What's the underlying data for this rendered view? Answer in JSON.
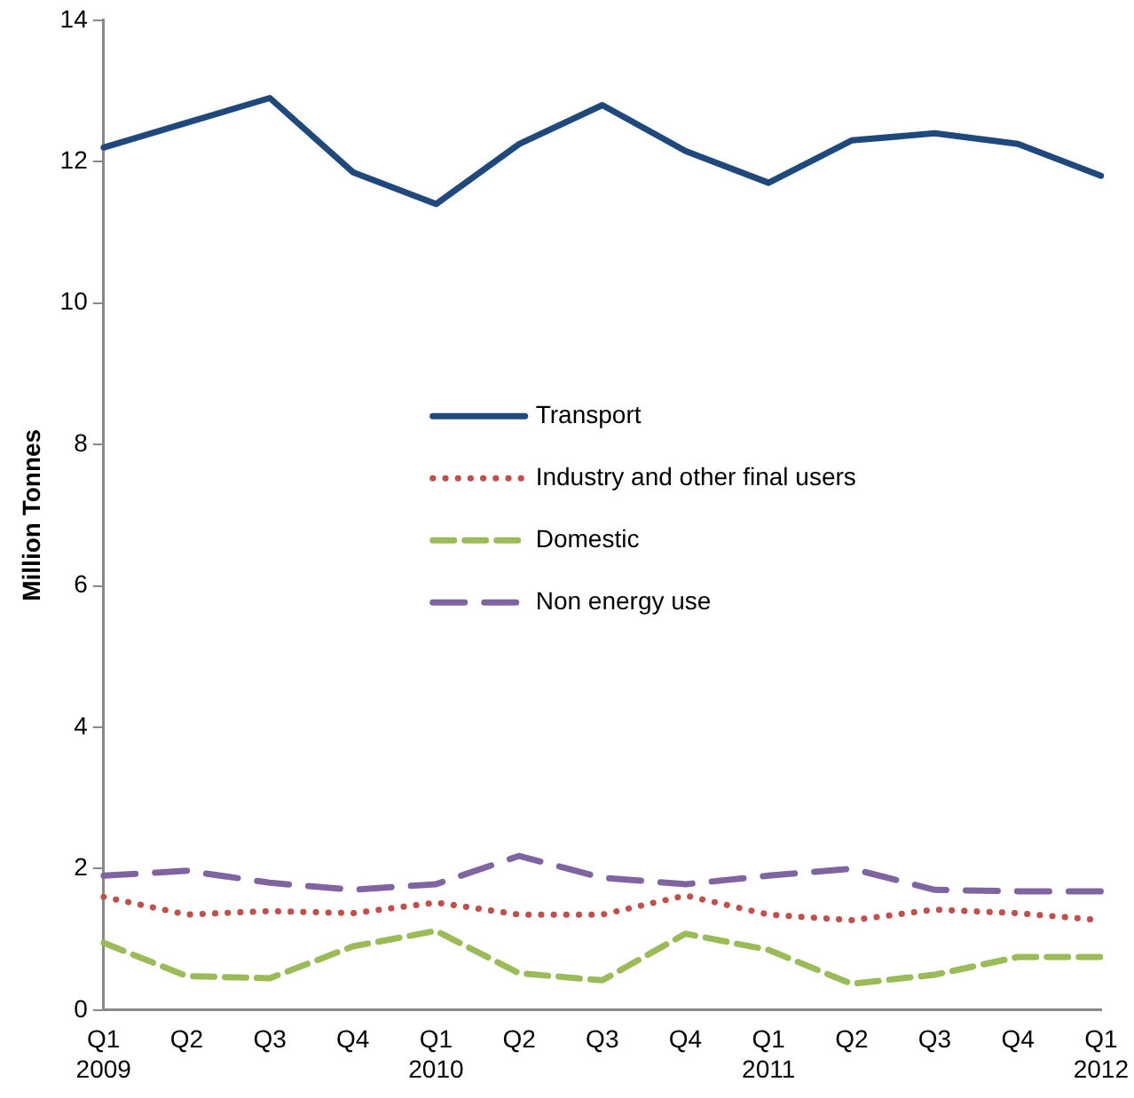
{
  "chart_data": {
    "type": "line",
    "ylabel": "Million Tonnes",
    "categories": [
      "Q1 2009",
      "Q2",
      "Q3",
      "Q4",
      "Q1 2010",
      "Q2",
      "Q3",
      "Q4",
      "Q1 2011",
      "Q2",
      "Q3",
      "Q4",
      "Q1 2012"
    ],
    "series": [
      {
        "name": "Transport",
        "color": "#1f497d",
        "line_style": "solid",
        "values": [
          12.2,
          12.55,
          12.9,
          11.85,
          11.4,
          12.25,
          12.8,
          12.15,
          11.7,
          12.3,
          12.4,
          12.25,
          11.8
        ]
      },
      {
        "name": "Industry and other final users",
        "color": "#c0504d",
        "line_style": "dotted",
        "values": [
          1.6,
          1.35,
          1.4,
          1.37,
          1.52,
          1.35,
          1.35,
          1.62,
          1.35,
          1.27,
          1.42,
          1.37,
          1.27
        ]
      },
      {
        "name": "Domestic",
        "color": "#9bbb59",
        "line_style": "dashed",
        "values": [
          0.95,
          0.48,
          0.45,
          0.9,
          1.12,
          0.52,
          0.42,
          1.08,
          0.85,
          0.37,
          0.5,
          0.75,
          0.75
        ]
      },
      {
        "name": "Non energy use",
        "color": "#8064a2",
        "line_style": "dashed",
        "values": [
          1.9,
          1.97,
          1.8,
          1.7,
          1.78,
          2.18,
          1.87,
          1.78,
          1.9,
          2.0,
          1.7,
          1.68,
          1.68
        ]
      }
    ],
    "ylim": [
      0,
      14
    ],
    "yticks": [
      0,
      2,
      4,
      6,
      8,
      10,
      12,
      14
    ],
    "grid": false,
    "legend": "center",
    "marker": "none"
  }
}
